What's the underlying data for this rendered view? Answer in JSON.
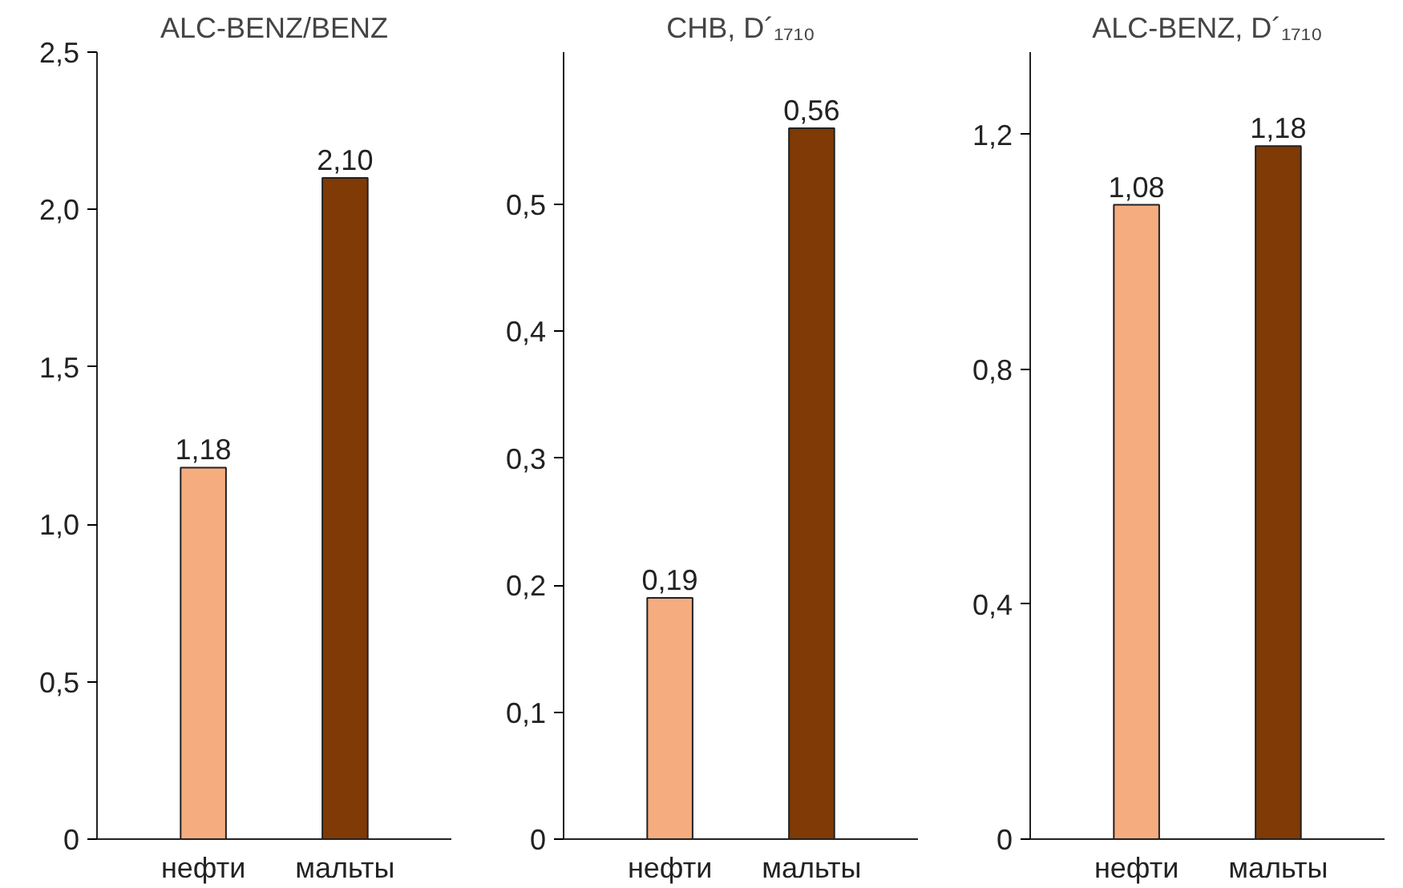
{
  "chart_data": [
    {
      "type": "bar",
      "title": "ALC-BENZ/BENZ",
      "categories": [
        "нефти",
        "мальты"
      ],
      "values": [
        1.18,
        2.1
      ],
      "value_labels": [
        "1,18",
        "2,10"
      ],
      "colors": [
        "#f5ad80",
        "#7f3a06"
      ],
      "ylim": [
        0,
        2.5
      ],
      "yticks": [
        {
          "value": 0,
          "label": "0"
        },
        {
          "value": 0.5,
          "label": "0,5"
        },
        {
          "value": 1.0,
          "label": "1,0"
        },
        {
          "value": 1.5,
          "label": "1,5"
        },
        {
          "value": 2.0,
          "label": "2,0"
        },
        {
          "value": 2.5,
          "label": "2,5"
        }
      ],
      "grid": false
    },
    {
      "type": "bar",
      "title": "CHB, D´₁₇₁₀",
      "categories": [
        "нефти",
        "мальты"
      ],
      "values": [
        0.19,
        0.56
      ],
      "value_labels": [
        "0,19",
        "0,56"
      ],
      "colors": [
        "#f5ad80",
        "#7f3a06"
      ],
      "ylim": [
        0,
        0.62
      ],
      "yticks": [
        {
          "value": 0,
          "label": "0"
        },
        {
          "value": 0.1,
          "label": "0,1"
        },
        {
          "value": 0.2,
          "label": "0,2"
        },
        {
          "value": 0.3,
          "label": "0,3"
        },
        {
          "value": 0.4,
          "label": "0,4"
        },
        {
          "value": 0.5,
          "label": "0,5"
        }
      ],
      "grid": false
    },
    {
      "type": "bar",
      "title": "ALC-BENZ, D´₁₇₁₀",
      "categories": [
        "нефти",
        "мальты"
      ],
      "values": [
        1.08,
        1.18
      ],
      "value_labels": [
        "1,08",
        "1,18"
      ],
      "colors": [
        "#f5ad80",
        "#7f3a06"
      ],
      "ylim": [
        0,
        1.34
      ],
      "yticks": [
        {
          "value": 0,
          "label": "0"
        },
        {
          "value": 0.4,
          "label": "0,4"
        },
        {
          "value": 0.8,
          "label": "0,8"
        },
        {
          "value": 1.2,
          "label": "1,2"
        }
      ],
      "grid": false
    }
  ]
}
